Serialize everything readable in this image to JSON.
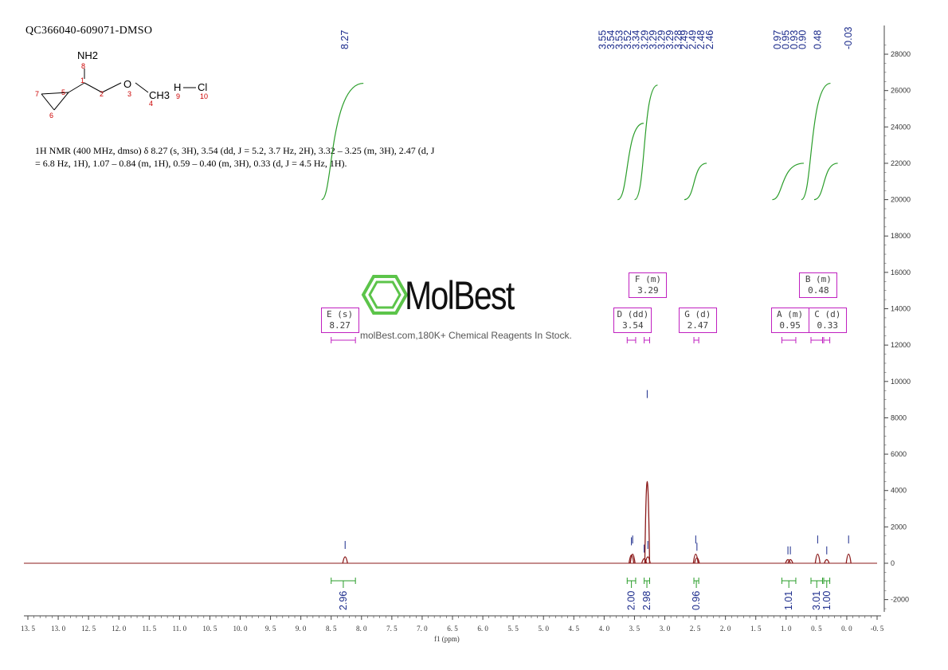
{
  "sample_title": "QC366040-609071-DMSO",
  "molecule": {
    "atoms": [
      "NH2",
      "O",
      "CH3",
      "H",
      "Cl"
    ],
    "atom_numbers": [
      "8",
      "1",
      "2",
      "3",
      "4",
      "5",
      "6",
      "7",
      "9",
      "10"
    ]
  },
  "nmr_text": {
    "line1": "1H NMR (400 MHz, dmso) δ 8.27 (s, 3H), 3.54 (dd, J = 5.2, 3.7 Hz, 2H), 3.32 – 3.25 (m, 3H), 2.47 (d, J",
    "line2": "= 6.8 Hz, 1H), 1.07 – 0.84 (m, 1H), 0.59 – 0.40 (m, 3H), 0.33 (d, J = 4.5 Hz, 1H)."
  },
  "watermark": {
    "brand": "MolBest",
    "tagline": "molBest.com,180K+ Chemical Reagents In Stock."
  },
  "colors": {
    "spectrum": "#8b1a1a",
    "integral": "#2a9d2a",
    "peak_label": "#1a2a8b",
    "multiplet_box": "#c020c0",
    "axis": "#444444"
  },
  "chart_data": {
    "type": "line",
    "title": "",
    "xlabel": "f1 (ppm)",
    "ylabel": "",
    "xlim": [
      13.5,
      -0.5
    ],
    "ylim": [
      -3000,
      29000
    ],
    "x_ticks": [
      "13.5",
      "13.0",
      "12.5",
      "12.0",
      "11.5",
      "11.0",
      "10.5",
      "10.0",
      "9.5",
      "9.0",
      "8.5",
      "8.0",
      "7.5",
      "7.0",
      "6.5",
      "6.0",
      "5.5",
      "5.0",
      "4.5",
      "4.0",
      "3.5",
      "3.0",
      "2.5",
      "2.0",
      "1.5",
      "1.0",
      "0.5",
      "0.0",
      "-0.5"
    ],
    "y_ticks": [
      "28000",
      "26000",
      "24000",
      "22000",
      "20000",
      "18000",
      "16000",
      "14000",
      "12000",
      "10000",
      "8000",
      "6000",
      "4000",
      "2000",
      "0",
      "-2000"
    ],
    "peaks": [
      {
        "ppm": 8.27,
        "height": 700
      },
      {
        "ppm": 3.55,
        "height": 900
      },
      {
        "ppm": 3.53,
        "height": 1000
      },
      {
        "ppm": 3.34,
        "height": 500
      },
      {
        "ppm": 3.29,
        "height": 9000
      },
      {
        "ppm": 3.28,
        "height": 700
      },
      {
        "ppm": 2.49,
        "height": 1000
      },
      {
        "ppm": 2.47,
        "height": 600
      },
      {
        "ppm": 0.97,
        "height": 400
      },
      {
        "ppm": 0.93,
        "height": 400
      },
      {
        "ppm": 0.48,
        "height": 1000
      },
      {
        "ppm": 0.33,
        "height": 400
      },
      {
        "ppm": -0.03,
        "height": 1000
      }
    ],
    "peak_label_groups": [
      {
        "labels": [
          "8.27"
        ]
      },
      {
        "labels": [
          "3.55",
          "3.54",
          "3.53",
          "3.52",
          "3.34",
          "3.29",
          "3.29",
          "3.29",
          "3.29",
          "3.28"
        ]
      },
      {
        "labels": [
          "2.49",
          "2.49",
          "2.48",
          "2.46"
        ]
      },
      {
        "labels": [
          "0.97",
          "0.95",
          "0.93",
          "0.90"
        ]
      },
      {
        "labels": [
          "0.48"
        ]
      },
      {
        "labels": [
          "-0.03"
        ]
      }
    ],
    "integrals": [
      {
        "value": "2.96",
        "from": 8.5,
        "to": 8.1
      },
      {
        "value": "2.00",
        "from": 3.62,
        "to": 3.48
      },
      {
        "value": "2.98",
        "from": 3.34,
        "to": 3.25
      },
      {
        "value": "0.96",
        "from": 2.52,
        "to": 2.44
      },
      {
        "value": "1.01",
        "from": 1.07,
        "to": 0.84
      },
      {
        "value": "3.01",
        "from": 0.59,
        "to": 0.4
      },
      {
        "value": "1.00",
        "from": 0.38,
        "to": 0.28
      }
    ],
    "integral_curves": [
      {
        "from": 8.5,
        "to": 8.1,
        "rise": 6400
      },
      {
        "from": 3.62,
        "to": 3.48,
        "rise": 4200
      },
      {
        "from": 3.34,
        "to": 3.25,
        "rise": 6300
      },
      {
        "from": 2.52,
        "to": 2.44,
        "rise": 2000
      },
      {
        "from": 1.07,
        "to": 0.84,
        "rise": 2000
      },
      {
        "from": 0.59,
        "to": 0.4,
        "rise": 6400
      },
      {
        "from": 0.38,
        "to": 0.28,
        "rise": 2000
      }
    ],
    "multiplets": [
      {
        "letter": "E",
        "type": "s",
        "shift": "8.27",
        "from": 8.5,
        "to": 8.1
      },
      {
        "letter": "D",
        "type": "dd",
        "shift": "3.54",
        "from": 3.62,
        "to": 3.48
      },
      {
        "letter": "F",
        "type": "m",
        "shift": "3.29",
        "from": 3.34,
        "to": 3.25
      },
      {
        "letter": "G",
        "type": "d",
        "shift": "2.47",
        "from": 2.52,
        "to": 2.44
      },
      {
        "letter": "A",
        "type": "m",
        "shift": "0.95",
        "from": 1.07,
        "to": 0.84
      },
      {
        "letter": "B",
        "type": "m",
        "shift": "0.48",
        "from": 0.59,
        "to": 0.4
      },
      {
        "letter": "C",
        "type": "d",
        "shift": "0.33",
        "from": 0.38,
        "to": 0.28
      }
    ]
  }
}
